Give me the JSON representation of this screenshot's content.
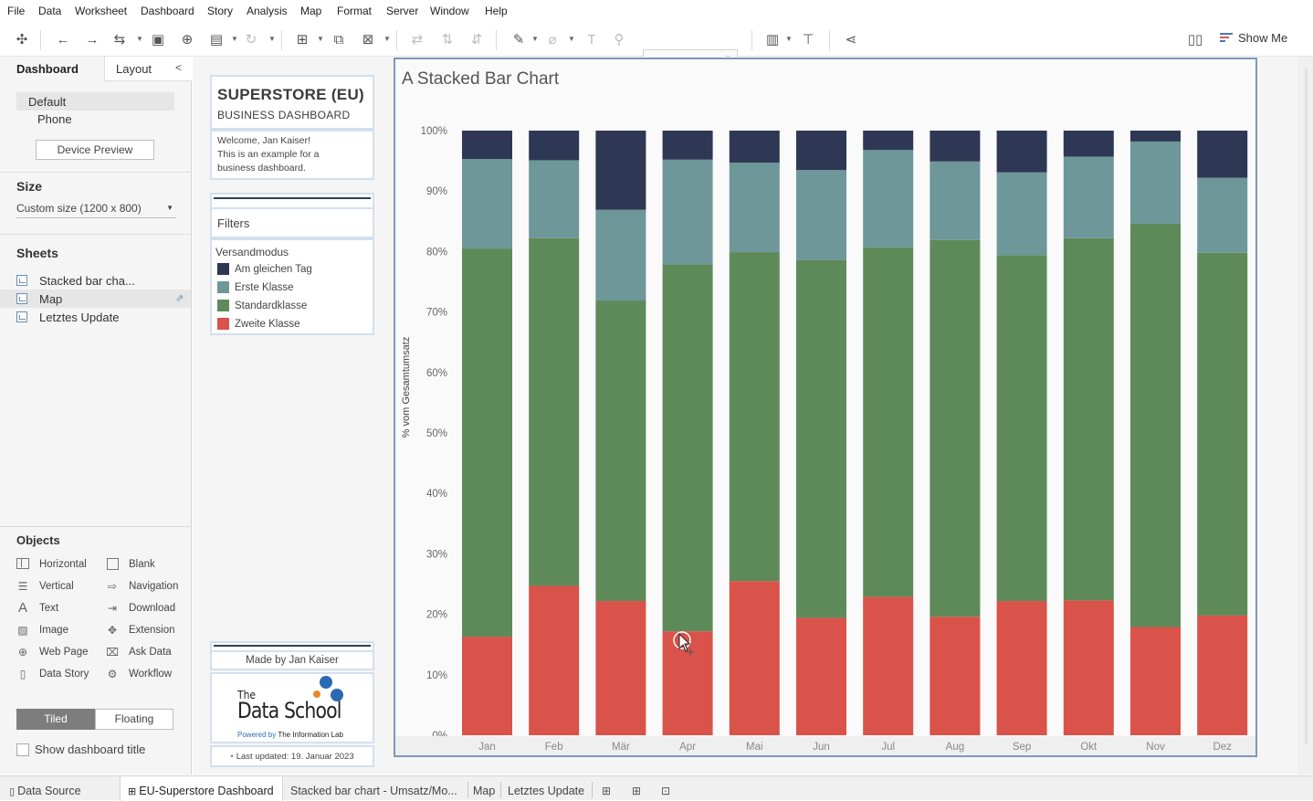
{
  "menu": [
    "File",
    "Data",
    "Worksheet",
    "Dashboard",
    "Story",
    "Analysis",
    "Map",
    "Format",
    "Server",
    "Window",
    "Help"
  ],
  "toolbar": {
    "show_me": "Show Me"
  },
  "left_pane": {
    "tab_dashboard": "Dashboard",
    "tab_layout": "Layout",
    "devices": [
      "Default",
      "Phone"
    ],
    "device_preview": "Device Preview",
    "size_heading": "Size",
    "size_value": "Custom size (1200 x 800)",
    "sheets_heading": "Sheets",
    "sheets": [
      "Stacked bar cha...",
      "Map",
      "Letztes Update"
    ],
    "objects_heading": "Objects",
    "objects": [
      {
        "label": "Horizontal",
        "icon": "horizontal-container-icon"
      },
      {
        "label": "Blank",
        "icon": "blank-icon"
      },
      {
        "label": "Vertical",
        "icon": "vertical-container-icon"
      },
      {
        "label": "Navigation",
        "icon": "navigation-icon"
      },
      {
        "label": "Text",
        "icon": "text-icon"
      },
      {
        "label": "Download",
        "icon": "download-icon"
      },
      {
        "label": "Image",
        "icon": "image-icon"
      },
      {
        "label": "Extension",
        "icon": "extension-icon"
      },
      {
        "label": "Web Page",
        "icon": "globe-icon"
      },
      {
        "label": "Ask Data",
        "icon": "ask-data-icon"
      },
      {
        "label": "Data Story",
        "icon": "book-icon"
      },
      {
        "label": "Workflow",
        "icon": "workflow-icon"
      }
    ],
    "tiled": "Tiled",
    "floating": "Floating",
    "show_title": "Show dashboard title"
  },
  "dashboard": {
    "title": "SUPERSTORE (EU)",
    "subtitle": "BUSINESS DASHBOARD",
    "welcome": [
      "Welcome, Jan Kaiser!",
      "This is an example for a",
      "business dashboard."
    ],
    "filters": "Filters",
    "legend_title": "Versandmodus",
    "legend": [
      {
        "label": "Am gleichen Tag",
        "color": "#2e3754"
      },
      {
        "label": "Erste Klasse",
        "color": "#6d9799"
      },
      {
        "label": "Standardklasse",
        "color": "#5e8a5a"
      },
      {
        "label": "Zweite Klasse",
        "color": "#d9534a"
      }
    ],
    "made_by": "Made by Jan Kaiser",
    "logo": {
      "the": "The",
      "name": "Data School",
      "powered": "Powered by",
      "powered_org": "The Information Lab"
    },
    "last_updated": "Last updated: 19. Januar 2023"
  },
  "chart_data": {
    "type": "bar",
    "stacked": true,
    "title": "A Stacked Bar Chart",
    "xlabel": "",
    "ylabel": "% vom Gesamtumsatz",
    "ylim": [
      0,
      100
    ],
    "yticks": [
      "0%",
      "10%",
      "20%",
      "30%",
      "40%",
      "50%",
      "60%",
      "70%",
      "80%",
      "90%",
      "100%"
    ],
    "categories": [
      "Jan",
      "Feb",
      "Mär",
      "Apr",
      "Mai",
      "Jun",
      "Jul",
      "Aug",
      "Sep",
      "Okt",
      "Nov",
      "Dez"
    ],
    "series": [
      {
        "name": "Zweite Klasse",
        "color": "#d9534a",
        "values": [
          16.3,
          24.7,
          22.2,
          17.2,
          25.5,
          19.4,
          22.9,
          19.6,
          22.2,
          22.3,
          17.9,
          19.8
        ]
      },
      {
        "name": "Standardklasse",
        "color": "#5e8a5a",
        "values": [
          64.2,
          57.5,
          49.7,
          60.7,
          54.4,
          59.2,
          57.8,
          62.3,
          57.2,
          59.9,
          66.7,
          60.0
        ]
      },
      {
        "name": "Erste Klasse",
        "color": "#6d9799",
        "values": [
          14.8,
          12.9,
          15.0,
          17.3,
          14.8,
          14.9,
          16.1,
          13.0,
          13.7,
          13.5,
          13.6,
          12.4
        ]
      },
      {
        "name": "Am gleichen Tag",
        "color": "#2e3754",
        "values": [
          4.7,
          4.9,
          13.1,
          4.8,
          5.3,
          6.5,
          3.2,
          5.1,
          6.9,
          4.3,
          1.8,
          7.8
        ]
      }
    ],
    "grid": false
  },
  "bottom_tabs": {
    "data_source": "Data Source",
    "tabs": [
      "EU-Superstore Dashboard",
      "Stacked bar chart - Umsatz/Mo...",
      "Map",
      "Letztes Update"
    ]
  }
}
